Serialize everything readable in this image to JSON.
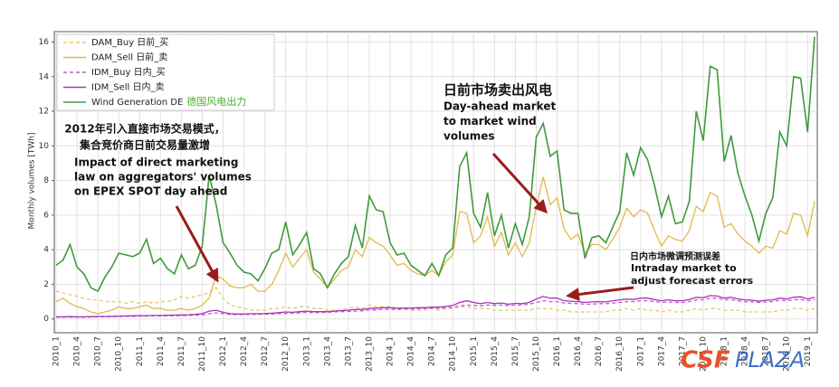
{
  "chart_data": {
    "type": "line",
    "y_label": "Monthly volumes [TWh]",
    "ylim": [
      -0.8,
      16.6
    ],
    "yticks": [
      0,
      2,
      4,
      6,
      8,
      10,
      12,
      14,
      16
    ],
    "grid": true,
    "legend": "upper left",
    "legend_note": "德国风电出力",
    "categories": [
      "2010_1",
      null,
      null,
      "2010_4",
      null,
      null,
      "2010_7",
      null,
      null,
      "2010_10",
      null,
      null,
      "2011_1",
      null,
      null,
      "2011_4",
      null,
      null,
      "2011_7",
      null,
      null,
      "2011_10",
      null,
      null,
      "2012_1",
      null,
      null,
      "2012_4",
      null,
      null,
      "2012_7",
      null,
      null,
      "2012_10",
      null,
      null,
      "2013_1",
      null,
      null,
      "2013_4",
      null,
      null,
      "2013_7",
      null,
      null,
      "2013_10",
      null,
      null,
      "2014_1",
      null,
      null,
      "2014_4",
      null,
      null,
      "2014_7",
      null,
      null,
      "2014_10",
      null,
      null,
      "2015_1",
      null,
      null,
      "2015_4",
      null,
      null,
      "2015_7",
      null,
      null,
      "2015_10",
      null,
      null,
      "2016_1",
      null,
      null,
      "2016_4",
      null,
      null,
      "2016_7",
      null,
      null,
      "2016_10",
      null,
      null,
      "2017_1",
      null,
      null,
      "2017_4",
      null,
      null,
      "2017_7",
      null,
      null,
      "2017_10",
      null,
      null,
      "2018_1",
      null,
      null,
      "2018_4",
      null,
      null,
      "2018_7",
      null,
      null,
      "2018_10",
      null,
      null,
      "2019_1",
      null
    ],
    "series": [
      {
        "name": "DAM_Buy  日前_买",
        "color": "#eac66a",
        "dashed": true,
        "values": [
          1.6,
          1.5,
          1.4,
          1.3,
          1.2,
          1.1,
          1.1,
          1.0,
          1.0,
          1.0,
          0.9,
          1.0,
          0.9,
          1.0,
          0.9,
          1.0,
          1.0,
          1.1,
          1.3,
          1.2,
          1.3,
          1.4,
          1.5,
          1.8,
          1.2,
          0.8,
          0.7,
          0.6,
          0.5,
          0.5,
          0.5,
          0.6,
          0.6,
          0.7,
          0.6,
          0.7,
          0.7,
          0.6,
          0.6,
          0.5,
          0.5,
          0.5,
          0.6,
          0.7,
          0.6,
          0.8,
          0.7,
          0.7,
          0.7,
          0.6,
          0.6,
          0.5,
          0.5,
          0.5,
          0.6,
          0.5,
          0.6,
          0.6,
          0.7,
          0.7,
          0.6,
          0.6,
          0.6,
          0.5,
          0.5,
          0.5,
          0.5,
          0.5,
          0.5,
          0.6,
          0.6,
          0.6,
          0.5,
          0.5,
          0.4,
          0.4,
          0.4,
          0.4,
          0.4,
          0.4,
          0.5,
          0.5,
          0.6,
          0.5,
          0.6,
          0.5,
          0.5,
          0.4,
          0.5,
          0.4,
          0.4,
          0.5,
          0.6,
          0.5,
          0.6,
          0.6,
          0.5,
          0.5,
          0.5,
          0.4,
          0.4,
          0.4,
          0.4,
          0.4,
          0.5,
          0.5,
          0.6,
          0.6,
          0.5,
          0.6
        ]
      },
      {
        "name": "DAM_Sell  日前_卖",
        "color": "#e3b84c",
        "dashed": false,
        "values": [
          1.0,
          1.2,
          0.9,
          0.7,
          0.6,
          0.4,
          0.3,
          0.4,
          0.5,
          0.7,
          0.6,
          0.6,
          0.7,
          0.8,
          0.6,
          0.6,
          0.5,
          0.5,
          0.6,
          0.5,
          0.6,
          0.8,
          1.2,
          2.5,
          2.3,
          1.9,
          1.8,
          1.8,
          2.0,
          1.6,
          1.6,
          2.0,
          2.8,
          3.8,
          3.0,
          3.5,
          4.0,
          2.7,
          2.3,
          1.8,
          2.3,
          2.8,
          3.0,
          4.0,
          3.6,
          4.7,
          4.4,
          4.2,
          3.7,
          3.1,
          3.2,
          2.8,
          2.6,
          2.5,
          2.8,
          2.5,
          3.3,
          3.7,
          6.2,
          6.1,
          4.4,
          4.8,
          5.9,
          4.2,
          5.0,
          3.7,
          4.4,
          3.6,
          4.4,
          6.5,
          8.2,
          6.6,
          7.0,
          5.2,
          4.6,
          4.9,
          3.8,
          4.3,
          4.3,
          4.0,
          4.6,
          5.3,
          6.4,
          5.9,
          6.3,
          6.1,
          5.1,
          4.2,
          4.8,
          4.6,
          4.5,
          5.1,
          6.5,
          6.2,
          7.3,
          7.1,
          5.3,
          5.5,
          4.9,
          4.5,
          4.2,
          3.8,
          4.2,
          4.1,
          5.1,
          4.9,
          6.1,
          6.0,
          4.8,
          6.8
        ]
      },
      {
        "name": "IDM_Buy  日内_买",
        "color": "#c05ad0",
        "dashed": true,
        "values": [
          0.1,
          0.1,
          0.11,
          0.1,
          0.1,
          0.11,
          0.12,
          0.12,
          0.13,
          0.14,
          0.14,
          0.15,
          0.16,
          0.16,
          0.17,
          0.17,
          0.18,
          0.18,
          0.19,
          0.2,
          0.21,
          0.23,
          0.3,
          0.35,
          0.3,
          0.26,
          0.25,
          0.25,
          0.26,
          0.26,
          0.27,
          0.28,
          0.3,
          0.32,
          0.33,
          0.35,
          0.38,
          0.36,
          0.37,
          0.38,
          0.4,
          0.42,
          0.43,
          0.45,
          0.47,
          0.5,
          0.52,
          0.55,
          0.55,
          0.55,
          0.56,
          0.57,
          0.58,
          0.6,
          0.62,
          0.62,
          0.65,
          0.68,
          0.75,
          0.8,
          0.78,
          0.75,
          0.8,
          0.78,
          0.8,
          0.78,
          0.8,
          0.8,
          0.85,
          0.95,
          1.05,
          1.0,
          1.0,
          0.92,
          0.9,
          0.88,
          0.85,
          0.85,
          0.88,
          0.88,
          0.92,
          0.95,
          1.0,
          1.0,
          1.05,
          1.05,
          1.0,
          0.95,
          0.98,
          0.95,
          0.95,
          1.0,
          1.1,
          1.1,
          1.2,
          1.2,
          1.1,
          1.12,
          1.05,
          1.0,
          0.98,
          0.95,
          0.98,
          1.0,
          1.08,
          1.05,
          1.1,
          1.12,
          1.05,
          1.1
        ]
      },
      {
        "name": "IDM_Sell  日内_卖",
        "color": "#a932b8",
        "dashed": false,
        "values": [
          0.12,
          0.12,
          0.13,
          0.12,
          0.12,
          0.13,
          0.14,
          0.14,
          0.15,
          0.16,
          0.17,
          0.18,
          0.18,
          0.19,
          0.2,
          0.2,
          0.21,
          0.22,
          0.23,
          0.24,
          0.26,
          0.3,
          0.45,
          0.5,
          0.38,
          0.3,
          0.28,
          0.28,
          0.3,
          0.3,
          0.31,
          0.33,
          0.36,
          0.4,
          0.38,
          0.42,
          0.45,
          0.42,
          0.42,
          0.42,
          0.45,
          0.48,
          0.5,
          0.55,
          0.55,
          0.6,
          0.62,
          0.65,
          0.65,
          0.62,
          0.63,
          0.63,
          0.65,
          0.65,
          0.68,
          0.68,
          0.72,
          0.78,
          0.95,
          1.05,
          0.95,
          0.88,
          0.95,
          0.88,
          0.92,
          0.85,
          0.9,
          0.88,
          0.95,
          1.15,
          1.3,
          1.2,
          1.2,
          1.05,
          1.02,
          1.0,
          0.95,
          0.98,
          1.0,
          0.98,
          1.05,
          1.1,
          1.15,
          1.12,
          1.2,
          1.2,
          1.12,
          1.05,
          1.1,
          1.05,
          1.05,
          1.12,
          1.25,
          1.22,
          1.35,
          1.32,
          1.2,
          1.25,
          1.15,
          1.1,
          1.08,
          1.02,
          1.08,
          1.1,
          1.2,
          1.15,
          1.25,
          1.28,
          1.15,
          1.25
        ]
      },
      {
        "name": "Wind Generation DE",
        "color": "#3f9b3a",
        "dashed": false,
        "values": [
          3.1,
          3.4,
          4.3,
          3.0,
          2.6,
          1.8,
          1.6,
          2.4,
          3.0,
          3.8,
          3.7,
          3.6,
          3.8,
          4.6,
          3.2,
          3.5,
          2.9,
          2.6,
          3.7,
          2.9,
          3.1,
          4.2,
          8.3,
          6.6,
          4.4,
          3.8,
          3.1,
          2.7,
          2.6,
          2.2,
          2.9,
          3.8,
          4.0,
          5.6,
          3.7,
          4.3,
          5.0,
          2.9,
          2.6,
          1.8,
          2.6,
          3.2,
          3.6,
          5.4,
          4.1,
          7.1,
          6.3,
          6.2,
          4.4,
          3.7,
          3.8,
          3.1,
          2.8,
          2.5,
          3.2,
          2.5,
          3.7,
          4.1,
          8.8,
          9.6,
          6.1,
          5.3,
          7.3,
          4.8,
          6.0,
          4.1,
          5.5,
          4.3,
          5.9,
          10.5,
          11.3,
          9.4,
          9.7,
          6.3,
          6.1,
          6.1,
          3.5,
          4.7,
          4.8,
          4.4,
          5.3,
          6.2,
          9.6,
          8.3,
          9.9,
          9.2,
          7.7,
          5.9,
          7.1,
          5.5,
          5.6,
          6.8,
          12.0,
          10.3,
          14.6,
          14.4,
          9.1,
          10.6,
          8.4,
          7.1,
          6.0,
          4.5,
          6.1,
          7.0,
          10.8,
          10.0,
          14.0,
          13.9,
          10.8,
          16.3
        ]
      }
    ],
    "annotations": [
      {
        "lines": [
          "2012年引入直接市场交易模式，",
          "集合竞价商日前交易量激增"
        ]
      },
      {
        "lines": [
          "Impact of direct marketing",
          "law on aggregators' volumes",
          "on EPEX SPOT day ahead"
        ]
      },
      {
        "lines": [
          "日前市场卖出风电"
        ]
      },
      {
        "lines": [
          "Day-ahead market",
          "to market wind",
          "volumes"
        ]
      },
      {
        "lines": [
          "日内市场微调预测误差"
        ]
      },
      {
        "lines": [
          "Intraday market to",
          "adjust forecast errors"
        ]
      }
    ],
    "watermark": {
      "part1": "CSF",
      "part2": "PLAZA"
    }
  }
}
